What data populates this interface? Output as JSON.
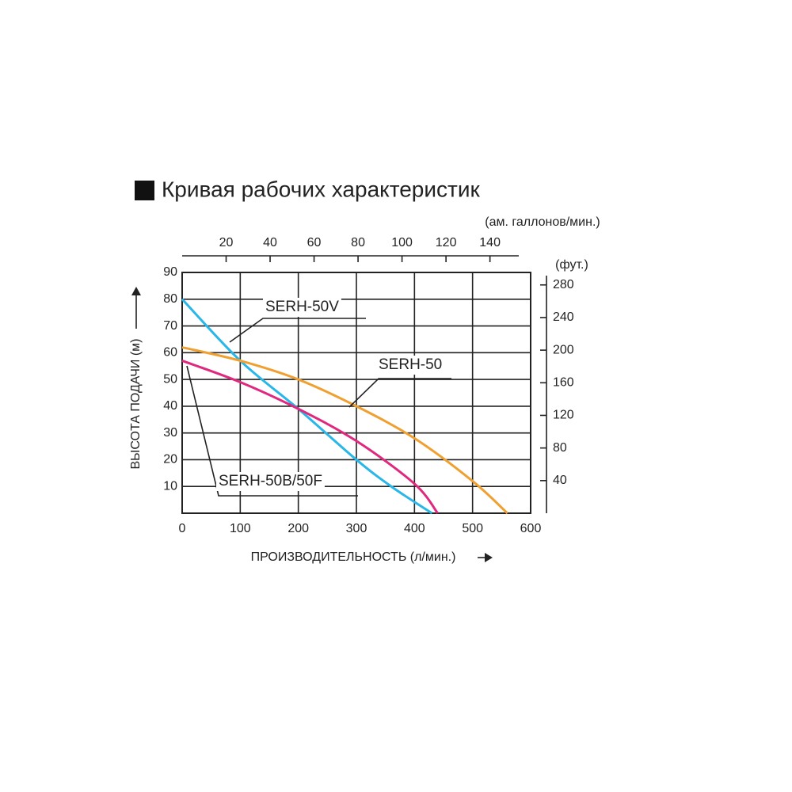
{
  "chart_data": {
    "type": "line",
    "title": "Кривая рабочих характеристик",
    "xlabel": "ПРОИЗВОДИТЕЛЬНОСТЬ (л/мин.)",
    "ylabel": "ВЫСОТА ПОДАЧИ (м)",
    "x2label": "(ам. галлонов/мин.)",
    "y2label": "(фут.)",
    "xlim": [
      0,
      600
    ],
    "xticks": [
      0,
      100,
      200,
      300,
      400,
      500,
      600
    ],
    "ylim": [
      0,
      90
    ],
    "yticks": [
      10,
      20,
      30,
      40,
      50,
      60,
      70,
      80,
      90
    ],
    "x2lim": [
      0,
      158.5
    ],
    "x2ticks": [
      20,
      40,
      60,
      80,
      100,
      120,
      140
    ],
    "y2lim": [
      0,
      295.3
    ],
    "y2ticks": [
      40,
      80,
      120,
      160,
      200,
      240,
      280
    ],
    "grid": true,
    "series": [
      {
        "name": "SERH-50V",
        "color": "#29b6e8",
        "x": [
          0,
          100,
          200,
          300,
          360,
          430
        ],
        "values": [
          80,
          57,
          39,
          20,
          10,
          0
        ]
      },
      {
        "name": "SERH-50",
        "color": "#f0a030",
        "x": [
          0,
          100,
          200,
          300,
          400,
          500,
          560
        ],
        "values": [
          62,
          57,
          50,
          40,
          28,
          12,
          0
        ]
      },
      {
        "name": "SERH-50B/50F",
        "color": "#e0287e",
        "x": [
          0,
          100,
          200,
          300,
          400,
          440
        ],
        "values": [
          57,
          49,
          39,
          27,
          11,
          0
        ]
      }
    ]
  }
}
